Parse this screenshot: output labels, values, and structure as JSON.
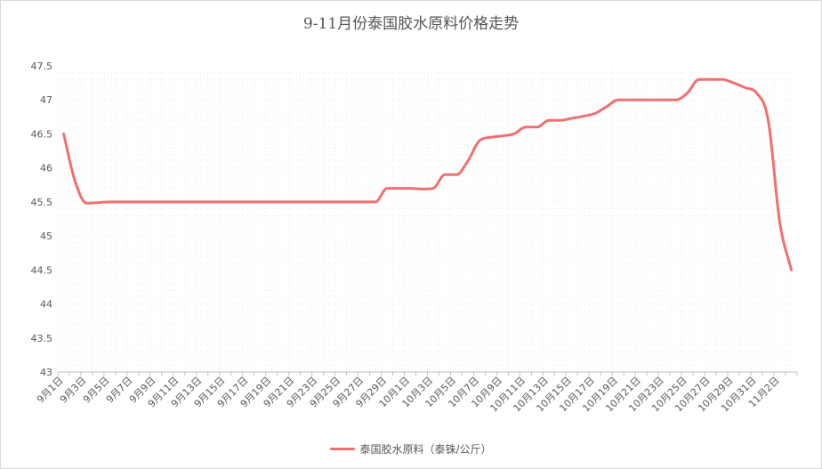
{
  "chart_data": {
    "type": "line",
    "title": "9-11月份泰国胶水原料价格走势",
    "xlabel": "",
    "ylabel": "",
    "ylim": [
      43,
      47.5
    ],
    "yticks": [
      "43",
      "43.5",
      "44",
      "44.5",
      "45",
      "45.5",
      "46",
      "46.5",
      "47",
      "47.5"
    ],
    "x_tick_labels": [
      "9月1日",
      "9月3日",
      "9月5日",
      "9月7日",
      "9月9日",
      "9月11日",
      "9月13日",
      "9月15日",
      "9月17日",
      "9月19日",
      "9月21日",
      "9月23日",
      "9月25日",
      "9月27日",
      "9月29日",
      "10月1日",
      "10月3日",
      "10月5日",
      "10月7日",
      "10月9日",
      "10月11日",
      "10月13日",
      "10月15日",
      "10月17日",
      "10月19日",
      "10月21日",
      "10月23日",
      "10月25日",
      "10月27日",
      "10月29日",
      "10月31日",
      "11月2日"
    ],
    "grid": "minor-dotted",
    "legend_position": "bottom",
    "series": [
      {
        "name": "泰国胶水原料（泰铢/公斤）",
        "color": "#f07070",
        "x": [
          "9月1日",
          "9月2日",
          "9月3日",
          "9月4日",
          "9月5日",
          "9月6日",
          "9月7日",
          "9月8日",
          "9月9日",
          "9月10日",
          "9月11日",
          "9月12日",
          "9月13日",
          "9月14日",
          "9月15日",
          "9月16日",
          "9月17日",
          "9月18日",
          "9月19日",
          "9月20日",
          "9月21日",
          "9月22日",
          "9月23日",
          "9月24日",
          "9月25日",
          "9月26日",
          "9月27日",
          "9月28日",
          "9月29日",
          "9月30日",
          "10月1日",
          "10月2日",
          "10月3日",
          "10月4日",
          "10月5日",
          "10月6日",
          "10月7日",
          "10月8日",
          "10月9日",
          "10月10日",
          "10月11日",
          "10月12日",
          "10月13日",
          "10月14日",
          "10月15日",
          "10月16日",
          "10月17日",
          "10月18日",
          "10月19日",
          "10月20日",
          "10月21日",
          "10月22日",
          "10月23日",
          "10月24日",
          "10月25日",
          "10月26日",
          "10月27日",
          "10月28日",
          "10月29日",
          "10月30日",
          "10月31日",
          "11月1日",
          "11月2日",
          "11月3日"
        ],
        "values": [
          46.5,
          45.8,
          45.48,
          45.49,
          45.5,
          45.5,
          45.5,
          45.5,
          45.5,
          45.5,
          45.5,
          45.5,
          45.5,
          45.5,
          45.5,
          45.5,
          45.5,
          45.5,
          45.5,
          45.5,
          45.5,
          45.5,
          45.5,
          45.5,
          45.5,
          45.5,
          45.5,
          45.5,
          45.7,
          45.7,
          45.7,
          45.69,
          45.7,
          45.9,
          45.9,
          46.1,
          46.4,
          46.45,
          46.47,
          46.5,
          46.6,
          46.6,
          46.7,
          46.7,
          46.73,
          46.76,
          46.8,
          46.9,
          47.0,
          47.0,
          47.0,
          47.0,
          47.0,
          47.0,
          47.1,
          47.3,
          47.3,
          47.3,
          47.25,
          47.18,
          47.1,
          46.7,
          45.2,
          44.5
        ]
      }
    ]
  }
}
